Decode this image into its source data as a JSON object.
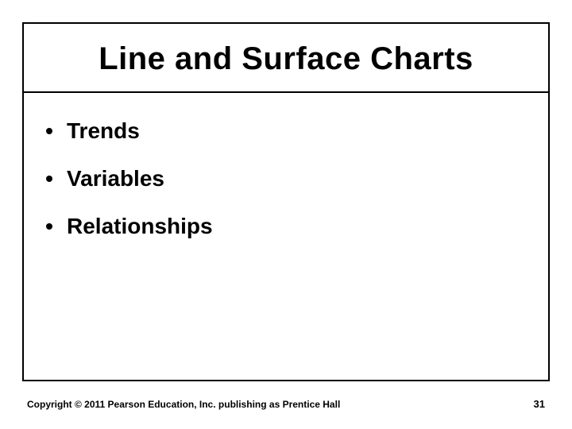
{
  "slide": {
    "title": "Line and Surface Charts",
    "bullets": [
      "Trends",
      "Variables",
      "Relationships"
    ],
    "title_fontsize": 40,
    "bullet_fontsize": 28,
    "border_color": "#000000",
    "background_color": "#ffffff",
    "text_color": "#000000"
  },
  "footer": {
    "copyright": "Copyright © 2011 Pearson Education, Inc. publishing as Prentice Hall",
    "page_number": "31",
    "fontsize": 12
  }
}
